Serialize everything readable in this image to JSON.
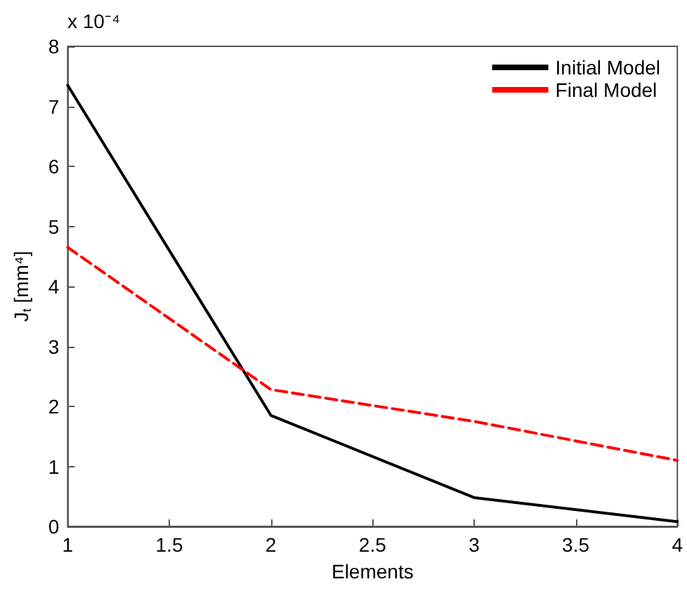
{
  "chart_data": {
    "type": "line",
    "xlabel": "Elements",
    "ylabel": "J$_{t}$ [mm⁴]",
    "annotations": [
      "x 10⁻⁴"
    ],
    "x": [
      1,
      2,
      3,
      4
    ],
    "series": [
      {
        "name": "Initial Model",
        "color": "#000000",
        "line_style": "solid",
        "values": [
          7.35,
          1.85,
          0.48,
          0.08
        ]
      },
      {
        "name": "Final Model",
        "color": "#ff0000",
        "line_style": "dashed",
        "values": [
          4.65,
          2.28,
          1.75,
          1.1
        ]
      }
    ],
    "xlim": [
      1,
      4
    ],
    "xticks": [
      1,
      1.5,
      2,
      2.5,
      3,
      3.5,
      4
    ],
    "ylim": [
      0,
      8
    ],
    "yticks": [
      0,
      1,
      2,
      3,
      4,
      5,
      6,
      7,
      8
    ],
    "grid": false,
    "legend": "top right",
    "marker": "none"
  }
}
